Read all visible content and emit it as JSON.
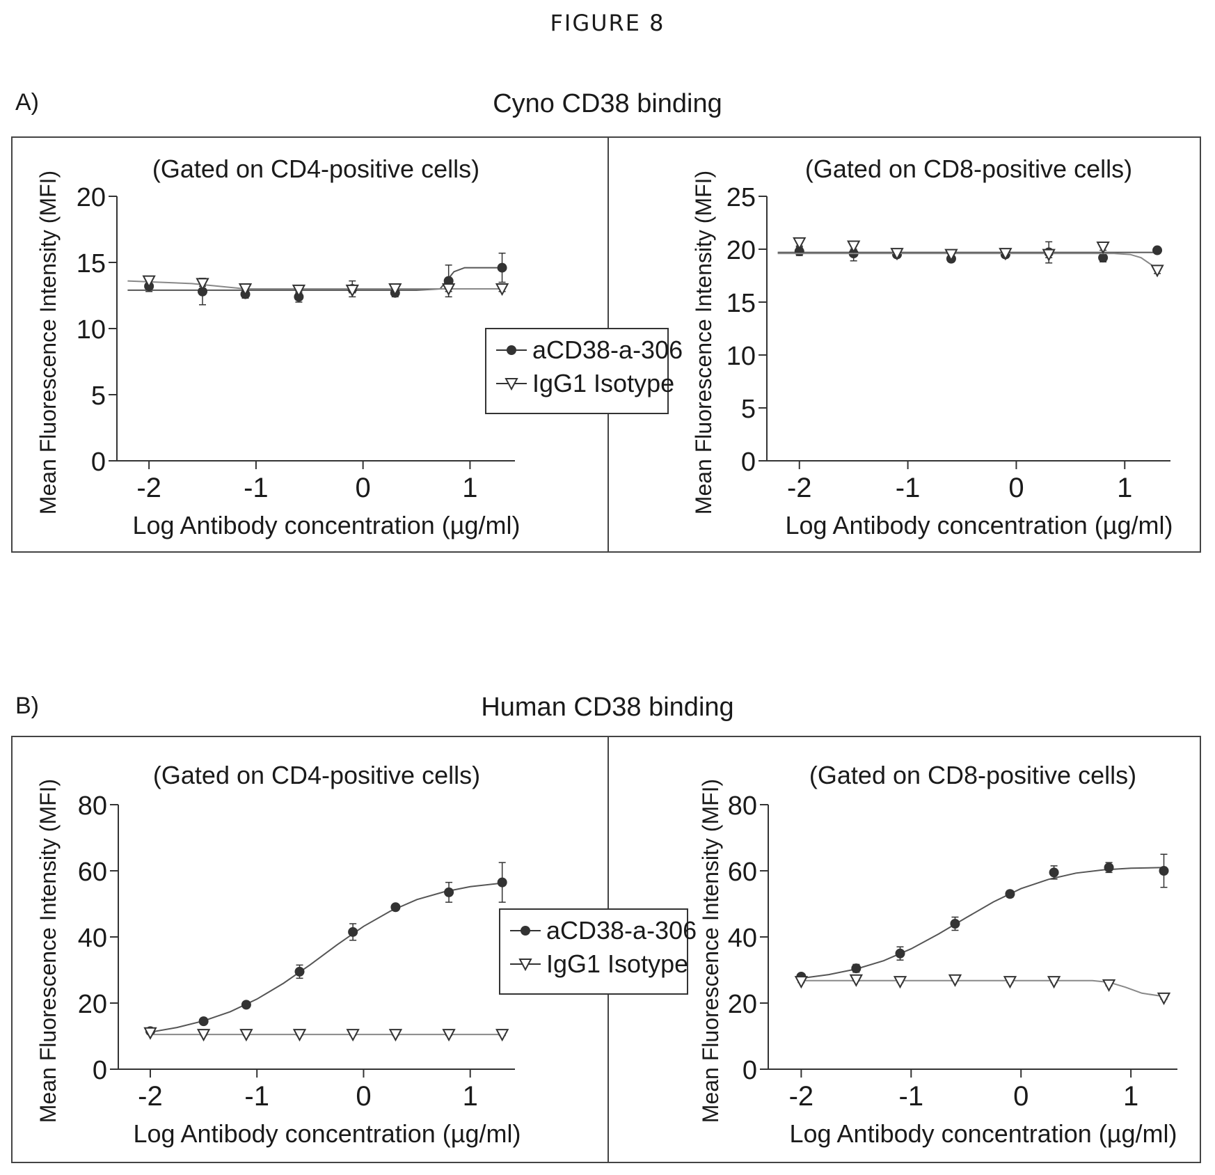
{
  "figure_title": "FIGURE 8",
  "panels": [
    {
      "letter": "A)",
      "heading": "Cyno CD38 binding"
    },
    {
      "letter": "B)",
      "heading": "Human CD38 binding"
    }
  ],
  "legend": {
    "series": [
      "aCD38-a-306",
      "IgG1 Isotype"
    ]
  },
  "chart_data": [
    {
      "type": "scatter",
      "panel": "A",
      "title": "(Gated on CD4-positive cells)",
      "xlabel": "Log Antibody concentration (µg/ml)",
      "ylabel": "Mean Fluorescence Intensity (MFI)",
      "xlim": [
        -2.3,
        1.55
      ],
      "ylim": [
        0,
        20
      ],
      "xticks": [
        -2,
        -1,
        0,
        1
      ],
      "xtick_labels": [
        "-2",
        "-1",
        "0",
        "1"
      ],
      "yticks": [
        0,
        5,
        10,
        15,
        20
      ],
      "ytick_labels": [
        "0",
        "5",
        "10",
        "15",
        "20"
      ],
      "x": [
        -2.0,
        -1.5,
        -1.1,
        -0.6,
        -0.1,
        0.3,
        0.8,
        1.3
      ],
      "series": [
        {
          "name": "aCD38-a-306",
          "marker": "filled-circle",
          "values": [
            13.2,
            12.8,
            12.6,
            12.4,
            13.0,
            12.7,
            13.6,
            14.6
          ],
          "errors": [
            0.4,
            1.0,
            0.3,
            0.4,
            0.6,
            0.3,
            1.2,
            1.1
          ],
          "fit": [
            [
              -2.2,
              12.9
            ],
            [
              0.5,
              12.9
            ],
            [
              0.72,
              13.0
            ],
            [
              0.78,
              13.6
            ],
            [
              0.85,
              14.3
            ],
            [
              0.95,
              14.6
            ],
            [
              1.3,
              14.6
            ]
          ]
        },
        {
          "name": "IgG1 Isotype",
          "marker": "open-triangle-down",
          "values": [
            13.6,
            13.4,
            13.0,
            12.9,
            12.9,
            13.0,
            13.0,
            13.0
          ],
          "errors": [
            0.2,
            0.2,
            0.2,
            0.2,
            0.2,
            0.2,
            0.2,
            0.2
          ],
          "fit": [
            [
              -2.2,
              13.6
            ],
            [
              -1.6,
              13.4
            ],
            [
              -1.1,
              13.0
            ],
            [
              1.3,
              13.0
            ]
          ]
        }
      ]
    },
    {
      "type": "scatter",
      "panel": "A",
      "title": "(Gated on CD8-positive cells)",
      "xlabel": "Log Antibody concentration (µg/ml)",
      "ylabel": "Mean Fluorescence Intensity (MFI)",
      "xlim": [
        -2.3,
        1.55
      ],
      "ylim": [
        0,
        25
      ],
      "xticks": [
        -2,
        -1,
        0,
        1
      ],
      "xtick_labels": [
        "-2",
        "-1",
        "0",
        "1"
      ],
      "yticks": [
        0,
        5,
        10,
        15,
        20,
        25
      ],
      "ytick_labels": [
        "0",
        "5",
        "10",
        "15",
        "20",
        "25"
      ],
      "x": [
        -2.0,
        -1.5,
        -1.1,
        -0.6,
        -0.1,
        0.3,
        0.8,
        1.3
      ],
      "series": [
        {
          "name": "aCD38-a-306",
          "marker": "filled-circle",
          "values": [
            19.8,
            19.6,
            19.5,
            19.1,
            19.5,
            19.7,
            19.2,
            19.9
          ],
          "errors": [
            0.4,
            0.7,
            0.3,
            0.3,
            0.3,
            1.0,
            0.4,
            0.2
          ],
          "fit": [
            [
              -2.2,
              19.7
            ],
            [
              1.3,
              19.7
            ]
          ]
        },
        {
          "name": "IgG1 Isotype",
          "marker": "open-triangle-down",
          "values": [
            20.6,
            20.3,
            19.6,
            19.5,
            19.6,
            19.5,
            20.2,
            18.0
          ],
          "errors": [
            0.3,
            0.3,
            0.3,
            0.3,
            0.3,
            0.3,
            0.3,
            0.3
          ],
          "fit": [
            [
              -2.2,
              19.6
            ],
            [
              0.9,
              19.6
            ],
            [
              1.05,
              19.5
            ],
            [
              1.15,
              19.2
            ],
            [
              1.25,
              18.5
            ],
            [
              1.3,
              18.0
            ]
          ]
        }
      ]
    },
    {
      "type": "scatter",
      "panel": "B",
      "title": "(Gated on CD4-positive cells)",
      "xlabel": "Log Antibody concentration (µg/ml)",
      "ylabel": "Mean Fluorescence Intensity (MFI)",
      "xlim": [
        -2.3,
        1.55
      ],
      "ylim": [
        0,
        80
      ],
      "xticks": [
        -2,
        -1,
        0,
        1
      ],
      "xtick_labels": [
        "-2",
        "-1",
        "0",
        "1"
      ],
      "yticks": [
        0,
        20,
        40,
        60,
        80
      ],
      "ytick_labels": [
        "0",
        "20",
        "40",
        "60",
        "80"
      ],
      "x": [
        -2.0,
        -1.5,
        -1.1,
        -0.6,
        -0.1,
        0.3,
        0.8,
        1.3
      ],
      "series": [
        {
          "name": "aCD38-a-306",
          "marker": "filled-circle",
          "values": [
            11.5,
            14.5,
            19.5,
            29.5,
            41.5,
            49.0,
            53.5,
            56.5
          ],
          "errors": [
            0.5,
            0.5,
            0.8,
            2.0,
            2.5,
            0.8,
            3.0,
            6.0
          ],
          "fit": [
            [
              -2.0,
              11.2
            ],
            [
              -1.75,
              12.6
            ],
            [
              -1.5,
              14.6
            ],
            [
              -1.25,
              17.4
            ],
            [
              -1.0,
              21.2
            ],
            [
              -0.75,
              26.0
            ],
            [
              -0.5,
              31.6
            ],
            [
              -0.25,
              37.6
            ],
            [
              0.0,
              43.2
            ],
            [
              0.25,
              47.8
            ],
            [
              0.5,
              51.3
            ],
            [
              0.75,
              53.6
            ],
            [
              1.0,
              55.2
            ],
            [
              1.3,
              56.3
            ]
          ]
        },
        {
          "name": "IgG1 Isotype",
          "marker": "open-triangle-down",
          "values": [
            11.0,
            10.5,
            10.5,
            10.5,
            10.5,
            10.5,
            10.5,
            10.5
          ],
          "errors": [
            0.3,
            0.3,
            0.3,
            0.3,
            0.3,
            0.3,
            0.3,
            0.3
          ],
          "fit": [
            [
              -2.0,
              10.5
            ],
            [
              1.3,
              10.5
            ]
          ]
        }
      ]
    },
    {
      "type": "scatter",
      "panel": "B",
      "title": "(Gated on CD8-positive cells)",
      "xlabel": "Log Antibody concentration (µg/ml)",
      "ylabel": "Mean Fluorescence Intensity (MFI)",
      "xlim": [
        -2.3,
        1.55
      ],
      "ylim": [
        0,
        80
      ],
      "xticks": [
        -2,
        -1,
        0,
        1
      ],
      "xtick_labels": [
        "-2",
        "-1",
        "0",
        "1"
      ],
      "yticks": [
        0,
        20,
        40,
        60,
        80
      ],
      "ytick_labels": [
        "0",
        "20",
        "40",
        "60",
        "80"
      ],
      "x": [
        -2.0,
        -1.5,
        -1.1,
        -0.6,
        -0.1,
        0.3,
        0.8,
        1.3
      ],
      "series": [
        {
          "name": "aCD38-a-306",
          "marker": "filled-circle",
          "values": [
            28.0,
            30.5,
            35.0,
            44.0,
            53.0,
            59.5,
            61.0,
            60.0
          ],
          "errors": [
            0.8,
            1.2,
            2.0,
            2.0,
            1.0,
            2.0,
            1.5,
            5.0
          ],
          "fit": [
            [
              -2.0,
              27.5
            ],
            [
              -1.75,
              28.6
            ],
            [
              -1.5,
              30.3
            ],
            [
              -1.25,
              32.8
            ],
            [
              -1.0,
              36.4
            ],
            [
              -0.75,
              40.9
            ],
            [
              -0.5,
              45.8
            ],
            [
              -0.25,
              50.6
            ],
            [
              0.0,
              54.6
            ],
            [
              0.25,
              57.4
            ],
            [
              0.5,
              59.3
            ],
            [
              0.75,
              60.3
            ],
            [
              1.0,
              60.8
            ],
            [
              1.3,
              61.0
            ]
          ]
        },
        {
          "name": "IgG1 Isotype",
          "marker": "open-triangle-down",
          "values": [
            26.5,
            27.0,
            26.5,
            27.0,
            26.5,
            26.5,
            25.5,
            21.5
          ],
          "errors": [
            0.3,
            0.3,
            0.3,
            0.3,
            0.3,
            0.3,
            0.3,
            0.3
          ],
          "fit": [
            [
              -2.0,
              26.8
            ],
            [
              0.65,
              26.8
            ],
            [
              0.8,
              26.3
            ],
            [
              0.95,
              24.8
            ],
            [
              1.1,
              23.0
            ],
            [
              1.3,
              22.0
            ]
          ]
        }
      ]
    }
  ]
}
